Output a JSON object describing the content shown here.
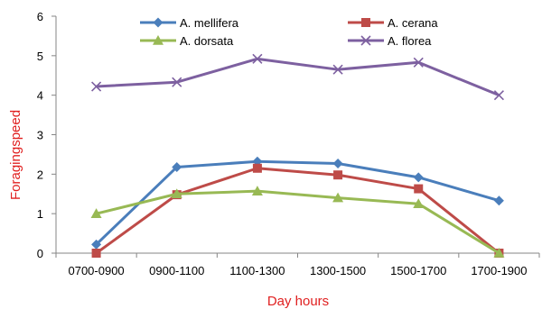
{
  "chart_data": {
    "type": "line",
    "categories": [
      "0700-0900",
      "0900-1100",
      "1100-1300",
      "1300-1500",
      "1500-1700",
      "1700-1900"
    ],
    "series": [
      {
        "name": "A. mellifera",
        "values": [
          0.22,
          2.18,
          2.32,
          2.27,
          1.92,
          1.33
        ],
        "color": "#4a7ebb",
        "marker": "diamond"
      },
      {
        "name": "A. cerana",
        "values": [
          0.0,
          1.48,
          2.15,
          1.98,
          1.63,
          0.0
        ],
        "color": "#be4b48",
        "marker": "square"
      },
      {
        "name": "A. dorsata",
        "values": [
          1.0,
          1.5,
          1.57,
          1.4,
          1.25,
          0.0
        ],
        "color": "#98b954",
        "marker": "triangle"
      },
      {
        "name": "A. florea",
        "values": [
          4.22,
          4.33,
          4.92,
          4.65,
          4.83,
          4.0
        ],
        "color": "#7d60a0",
        "marker": "x"
      }
    ],
    "title": "",
    "xlabel": "Day hours",
    "ylabel": "Foragingspeed",
    "ylim": [
      0,
      6
    ],
    "yticks": [
      "0",
      "1",
      "2",
      "3",
      "4",
      "5",
      "6"
    ],
    "grid": false,
    "legend": "top, two columns"
  }
}
